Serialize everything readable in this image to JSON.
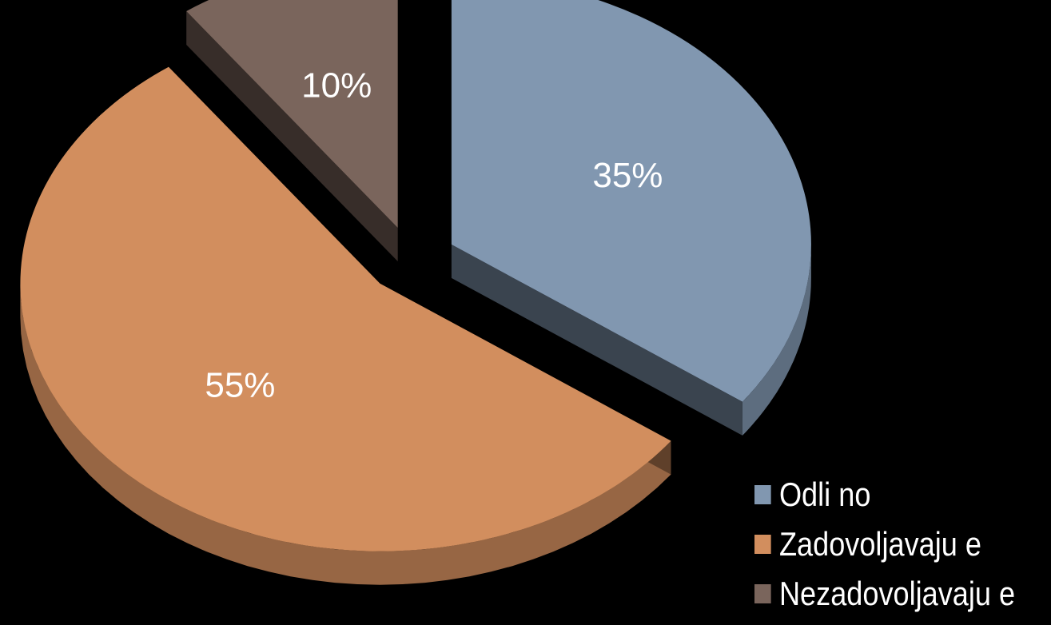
{
  "chart_data": {
    "type": "pie",
    "categories": [
      "Odli no",
      "Zadovoljavaju e",
      "Nezadovoljavaju e"
    ],
    "values": [
      35,
      55,
      10
    ],
    "data_labels": [
      "35%",
      "55%",
      "10%"
    ],
    "colors": [
      "#8197b0",
      "#d28e5e",
      "#7a655c"
    ],
    "exploded": true,
    "three_d": true,
    "legend": "bottom-right"
  }
}
